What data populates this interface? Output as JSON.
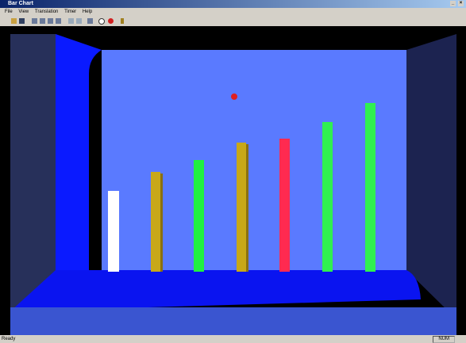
{
  "window": {
    "title": "Bar Chart",
    "controls": [
      "_",
      "×"
    ]
  },
  "menu": [
    "File",
    "View",
    "Translation",
    "Timer",
    "Help"
  ],
  "status": {
    "text": "Ready",
    "indicator": "NUM"
  }
}
